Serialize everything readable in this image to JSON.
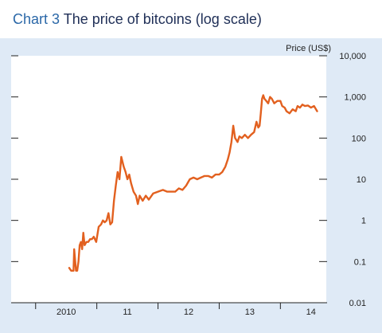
{
  "header": {
    "chart_number": "Chart 3",
    "title": "The price of bitcoins (log scale)"
  },
  "colors": {
    "line": "#e2601f",
    "panel_bg": "#dfeaf6",
    "plot_bg": "#ffffff",
    "title_number": "#2b68a8",
    "title_text": "#1f2f57",
    "axis": "#222222"
  },
  "chart_data": {
    "type": "line",
    "title": "The price of bitcoins (log scale)",
    "ylabel": "Price (US$)",
    "xlabel": "",
    "yscale": "log",
    "ylim": [
      0.01,
      10000
    ],
    "xlim": [
      2009.6,
      2014.75
    ],
    "y_ticks": [
      "10,000",
      "1,000",
      "100",
      "10",
      "1",
      "0.1",
      "0.01"
    ],
    "x_ticks": [
      {
        "label": "2010",
        "value": 2010.5
      },
      {
        "label": "11",
        "value": 2011.5
      },
      {
        "label": "12",
        "value": 2012.5
      },
      {
        "label": "13",
        "value": 2013.5
      },
      {
        "label": "14",
        "value": 2014.5
      }
    ],
    "grid": false,
    "legend": "none",
    "series": [
      {
        "x": [
          2010.55,
          2010.58,
          2010.62,
          2010.63,
          2010.66,
          2010.68,
          2010.7,
          2010.72,
          2010.74,
          2010.76,
          2010.78,
          2010.8,
          2010.83,
          2010.86,
          2010.89,
          2010.92,
          2010.95,
          2010.99,
          2011.03,
          2011.07,
          2011.1,
          2011.13,
          2011.16,
          2011.19,
          2011.22,
          2011.25,
          2011.28,
          2011.31,
          2011.34,
          2011.37,
          2011.4,
          2011.44,
          2011.47,
          2011.5,
          2011.53,
          2011.56,
          2011.6,
          2011.64,
          2011.67,
          2011.7,
          2011.75,
          2011.8,
          2011.85,
          2011.92,
          2012.0,
          2012.08,
          2012.15,
          2012.22,
          2012.28,
          2012.34,
          2012.4,
          2012.46,
          2012.52,
          2012.58,
          2012.64,
          2012.7,
          2012.76,
          2012.82,
          2012.88,
          2012.94,
          2013.0,
          2013.05,
          2013.1,
          2013.14,
          2013.17,
          2013.2,
          2013.23,
          2013.26,
          2013.3,
          2013.33,
          2013.37,
          2013.42,
          2013.47,
          2013.52,
          2013.57,
          2013.61,
          2013.64,
          2013.66,
          2013.68,
          2013.7,
          2013.72,
          2013.74,
          2013.77,
          2013.8,
          2013.83,
          2013.86,
          2013.9,
          2013.95,
          2014.0,
          2014.03,
          2014.07,
          2014.1,
          2014.15,
          2014.2,
          2014.25,
          2014.28,
          2014.32,
          2014.36,
          2014.4,
          2014.45,
          2014.5,
          2014.55,
          2014.6
        ],
        "values": [
          0.07,
          0.06,
          0.06,
          0.2,
          0.06,
          0.06,
          0.1,
          0.25,
          0.3,
          0.2,
          0.5,
          0.25,
          0.3,
          0.3,
          0.35,
          0.35,
          0.4,
          0.3,
          0.7,
          0.8,
          1.0,
          0.9,
          1.0,
          1.5,
          0.8,
          0.9,
          3.0,
          7.0,
          15.0,
          10.0,
          35.0,
          20.0,
          15.0,
          10.0,
          13.0,
          8.0,
          5.0,
          4.0,
          2.5,
          4.0,
          3.0,
          4.0,
          3.2,
          4.5,
          5.0,
          5.5,
          5.0,
          5.0,
          5.0,
          6.0,
          5.5,
          7.0,
          10.0,
          11.0,
          10.0,
          11.0,
          12.0,
          12.0,
          11.0,
          13.0,
          13.0,
          15.0,
          20.0,
          30.0,
          45.0,
          80.0,
          200.0,
          100.0,
          80.0,
          110.0,
          100.0,
          120.0,
          100.0,
          120.0,
          140.0,
          250.0,
          180.0,
          200.0,
          400.0,
          900.0,
          1100.0,
          900.0,
          800.0,
          700.0,
          1000.0,
          900.0,
          700.0,
          800.0,
          800.0,
          600.0,
          550.0,
          450.0,
          400.0,
          500.0,
          450.0,
          600.0,
          550.0,
          650.0,
          600.0,
          620.0,
          550.0,
          600.0,
          450.0
        ]
      }
    ]
  }
}
